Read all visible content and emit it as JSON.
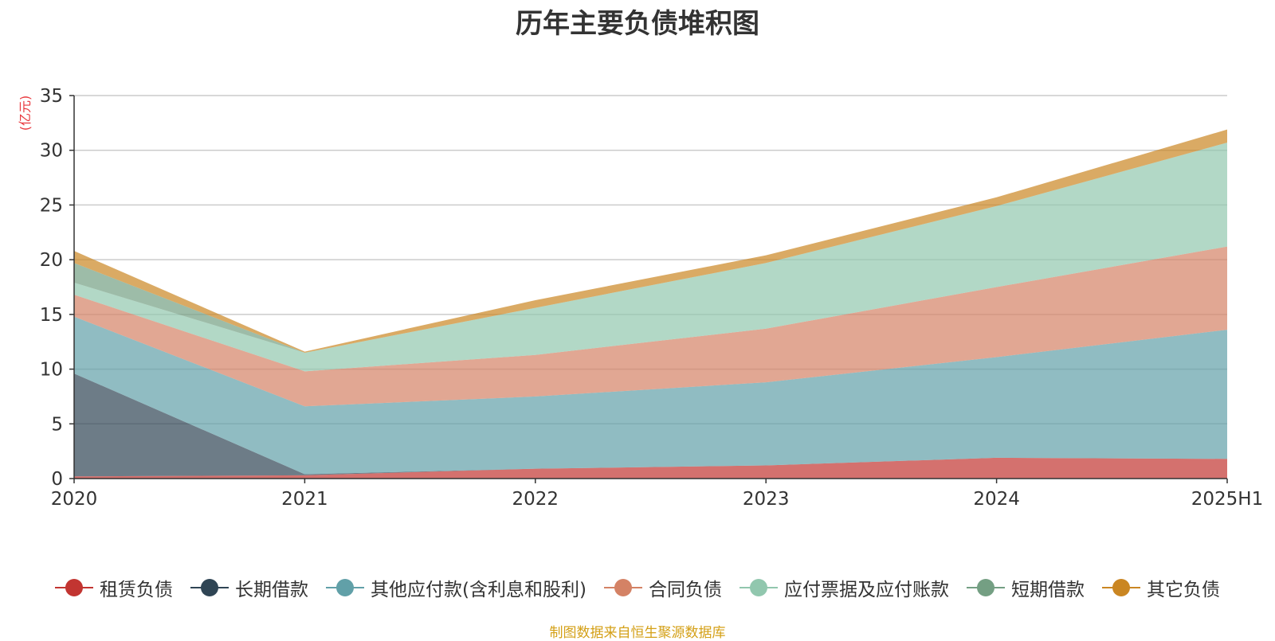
{
  "chart_data": {
    "type": "area",
    "stacked": true,
    "title": "历年主要负债堆积图",
    "ylabel": "(亿元)",
    "xlabel": "",
    "categories": [
      "2020",
      "2021",
      "2022",
      "2023",
      "2024",
      "2025H1"
    ],
    "ylim": [
      0,
      35
    ],
    "yticks": [
      0,
      5,
      10,
      15,
      20,
      25,
      30,
      35
    ],
    "grid": true,
    "legend_position": "bottom",
    "series": [
      {
        "name": "租赁负债",
        "color": "#c23531",
        "values": [
          0.2,
          0.3,
          0.9,
          1.2,
          1.9,
          1.8
        ]
      },
      {
        "name": "长期借款",
        "color": "#2f4554",
        "values": [
          9.4,
          0.1,
          0.0,
          0.0,
          0.0,
          0.0
        ]
      },
      {
        "name": "其他应付款(含利息和股利)",
        "color": "#61a0a8",
        "values": [
          5.2,
          6.2,
          6.6,
          7.6,
          9.2,
          11.8
        ]
      },
      {
        "name": "合同负债",
        "color": "#d48265",
        "values": [
          2.0,
          3.2,
          3.8,
          4.9,
          6.4,
          7.6
        ]
      },
      {
        "name": "应付票据及应付账款",
        "color": "#91c7ae",
        "values": [
          1.1,
          1.7,
          4.3,
          6.0,
          7.4,
          9.5
        ]
      },
      {
        "name": "短期借款",
        "color": "#749f83",
        "values": [
          1.8,
          0.0,
          0.0,
          0.0,
          0.0,
          0.0
        ]
      },
      {
        "name": "其它负债",
        "color": "#ca8622",
        "values": [
          1.1,
          0.1,
          0.7,
          0.7,
          0.8,
          1.2
        ]
      }
    ]
  },
  "source_note": "制图数据来自恒生聚源数据库"
}
